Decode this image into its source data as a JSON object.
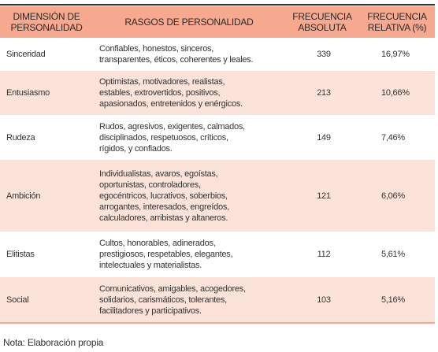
{
  "table": {
    "header": [
      [
        "DIMENSIÓN DE",
        "PERSONALIDAD"
      ],
      [
        "RASGOS DE PERSONALIDAD"
      ],
      [
        "FRECUENCIA",
        "ABSOLUTA"
      ],
      [
        "FRECUENCIA",
        "RELATIVA (%)"
      ]
    ],
    "rows": [
      [
        "Sinceridad",
        [
          "Confiables, honestos, sinceros,",
          "transparentes, éticos, coherentes y leales."
        ],
        "339",
        "16,97%"
      ],
      [
        "Entusiasmo",
        [
          "Optimistas,  motivadores, realistas,",
          "estables, extrovertidos, positivos,",
          "apasionados, entretenidos y enérgicos."
        ],
        "213",
        "10,66%"
      ],
      [
        "Rudeza",
        [
          "Rudos, agresivos, exigentes, calmados,",
          "disciplinados, respetuosos, críticos,",
          "rígidos, y  confiados."
        ],
        "149",
        "7,46%"
      ],
      [
        "Ambición",
        [
          "Individualistas, avaros, egoístas,",
          "oportunistas, controladores,",
          "egocéntricos, lucrativos, soberbios,",
          "arrogantes, interesados, engreídos,",
          "calculadores, arribistas y altaneros."
        ],
        "121",
        "6,06%"
      ],
      [
        "Elitistas",
        [
          "Cultos, honorables, adinerados,",
          "prestigiosos, respetables, elegantes,",
          "intelectuales y materialistas."
        ],
        "112",
        "5,61%"
      ],
      [
        "Social",
        [
          "Comunicativos, amigables, acogedores,",
          "solidarios, carismáticos, tolerantes,",
          "facilitadores y participativos."
        ],
        "103",
        "5,16%"
      ]
    ]
  },
  "note": "Nota: Elaboración propia"
}
